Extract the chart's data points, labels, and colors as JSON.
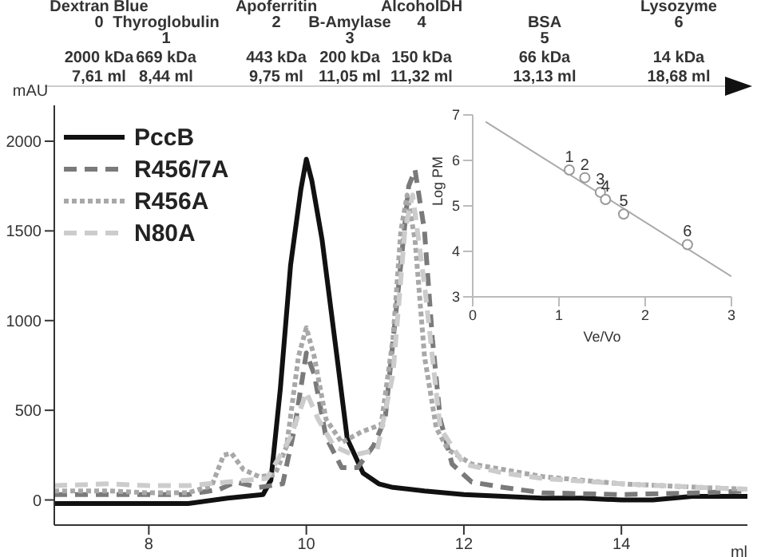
{
  "chart_data": [
    {
      "type": "line",
      "xlabel": "ml",
      "ylabel": "mAU",
      "annotations": [
        "Dextran Blue\n0\n2000 kDa\n7,61 ml",
        "Thyroglobulin\n1\n669 kDa\n8,44 ml",
        "Apoferritin\n2\n443 kDa\n9,75 ml",
        "B-Amylase\n3\n200 kDa\n11,05 ml",
        "AlcoholDH\n4\n150 kDa\n11,32 ml",
        "BSA\n5\n66 kDa\n13,13 ml",
        "Lysozyme\n6\n14 kDa\n18,68 ml"
      ],
      "xlim": [
        6.8,
        15.6
      ],
      "ylim": [
        -140,
        2200
      ],
      "xticks": [
        8,
        10,
        12,
        14
      ],
      "yticks": [
        0,
        500,
        1000,
        1500,
        2000
      ],
      "legend": "top left",
      "marker": "none",
      "series": [
        {
          "name": "PccB",
          "color": "#111111",
          "line_style": "solid",
          "x": [
            6.8,
            7.5,
            8,
            8.5,
            9,
            9.45,
            9.55,
            9.67,
            9.8,
            9.93,
            10,
            10.07,
            10.2,
            10.4,
            10.52,
            10.72,
            10.92,
            11.1,
            11.5,
            12,
            12.5,
            13,
            13.5,
            14,
            14.4,
            14.9,
            15.6
          ],
          "values": [
            -20,
            -20,
            -20,
            -20,
            10,
            30,
            110,
            620,
            1310,
            1730,
            1900,
            1780,
            1450,
            760,
            340,
            150,
            90,
            70,
            50,
            30,
            20,
            10,
            10,
            0,
            0,
            20,
            20
          ]
        },
        {
          "name": "R456/7A",
          "color": "#7a7a7a",
          "line_style": "dashed",
          "x": [
            6.8,
            7.5,
            8,
            8.5,
            8.9,
            9.1,
            9.4,
            9.7,
            9.85,
            10,
            10.1,
            10.25,
            10.45,
            10.65,
            10.85,
            11,
            11.15,
            11.3,
            11.38,
            11.5,
            11.6,
            11.7,
            11.85,
            12.1,
            12.5,
            13,
            14,
            15,
            15.6
          ],
          "values": [
            30,
            30,
            30,
            30,
            60,
            100,
            70,
            90,
            400,
            820,
            700,
            350,
            180,
            180,
            300,
            450,
            1100,
            1750,
            1840,
            1500,
            900,
            450,
            200,
            100,
            70,
            40,
            30,
            40,
            50
          ]
        },
        {
          "name": "R456A",
          "color": "#a8a8a8",
          "line_style": "dotted",
          "x": [
            6.8,
            7.5,
            8,
            8.5,
            8.8,
            8.95,
            9.05,
            9.2,
            9.4,
            9.6,
            9.75,
            9.9,
            10,
            10.1,
            10.25,
            10.45,
            10.7,
            10.95,
            11.1,
            11.2,
            11.28,
            11.38,
            11.5,
            11.65,
            11.8,
            12.1,
            12.5,
            13,
            13.5,
            14,
            14.5,
            15,
            15.6
          ],
          "values": [
            50,
            50,
            40,
            40,
            80,
            250,
            260,
            170,
            130,
            140,
            300,
            800,
            960,
            800,
            450,
            320,
            380,
            420,
            900,
            1500,
            1700,
            1450,
            800,
            400,
            280,
            200,
            170,
            130,
            110,
            90,
            80,
            70,
            60
          ]
        },
        {
          "name": "N80A",
          "color": "#cccccc",
          "line_style": "dashed",
          "x": [
            6.8,
            7.5,
            8,
            8.5,
            9,
            9.5,
            9.8,
            10,
            10.15,
            10.35,
            10.6,
            10.9,
            11.1,
            11.25,
            11.35,
            11.5,
            11.7,
            12,
            12.5,
            13,
            14,
            15,
            15.6
          ],
          "values": [
            80,
            90,
            80,
            80,
            100,
            120,
            350,
            600,
            450,
            300,
            250,
            280,
            700,
            1500,
            1700,
            1200,
            400,
            200,
            150,
            120,
            90,
            70,
            60
          ]
        }
      ]
    },
    {
      "type": "scatter",
      "xlabel": "Ve/Vo",
      "ylabel": "Log PM",
      "xlim": [
        0,
        3
      ],
      "ylim": [
        3,
        7
      ],
      "xticks": [
        0,
        1,
        2,
        3
      ],
      "yticks": [
        3,
        4,
        5,
        6,
        7
      ],
      "annotations": [
        {
          "text": "1",
          "x": 1.12,
          "y": 5.79
        },
        {
          "text": "2",
          "x": 1.3,
          "y": 5.62
        },
        {
          "text": "3",
          "x": 1.48,
          "y": 5.3
        },
        {
          "text": "4",
          "x": 1.54,
          "y": 5.14
        },
        {
          "text": "5",
          "x": 1.75,
          "y": 4.82
        },
        {
          "text": "6",
          "x": 2.49,
          "y": 4.15
        }
      ],
      "series": [
        {
          "type": "scatter",
          "color": "#999999",
          "marker": "circle",
          "x": [
            1.12,
            1.3,
            1.48,
            1.54,
            1.75,
            2.49
          ],
          "values": [
            5.79,
            5.62,
            5.3,
            5.14,
            4.82,
            4.15
          ]
        },
        {
          "type": "line",
          "color": "#aaaaaa",
          "x": [
            0.15,
            3
          ],
          "values": [
            6.85,
            3.45
          ]
        }
      ]
    }
  ]
}
